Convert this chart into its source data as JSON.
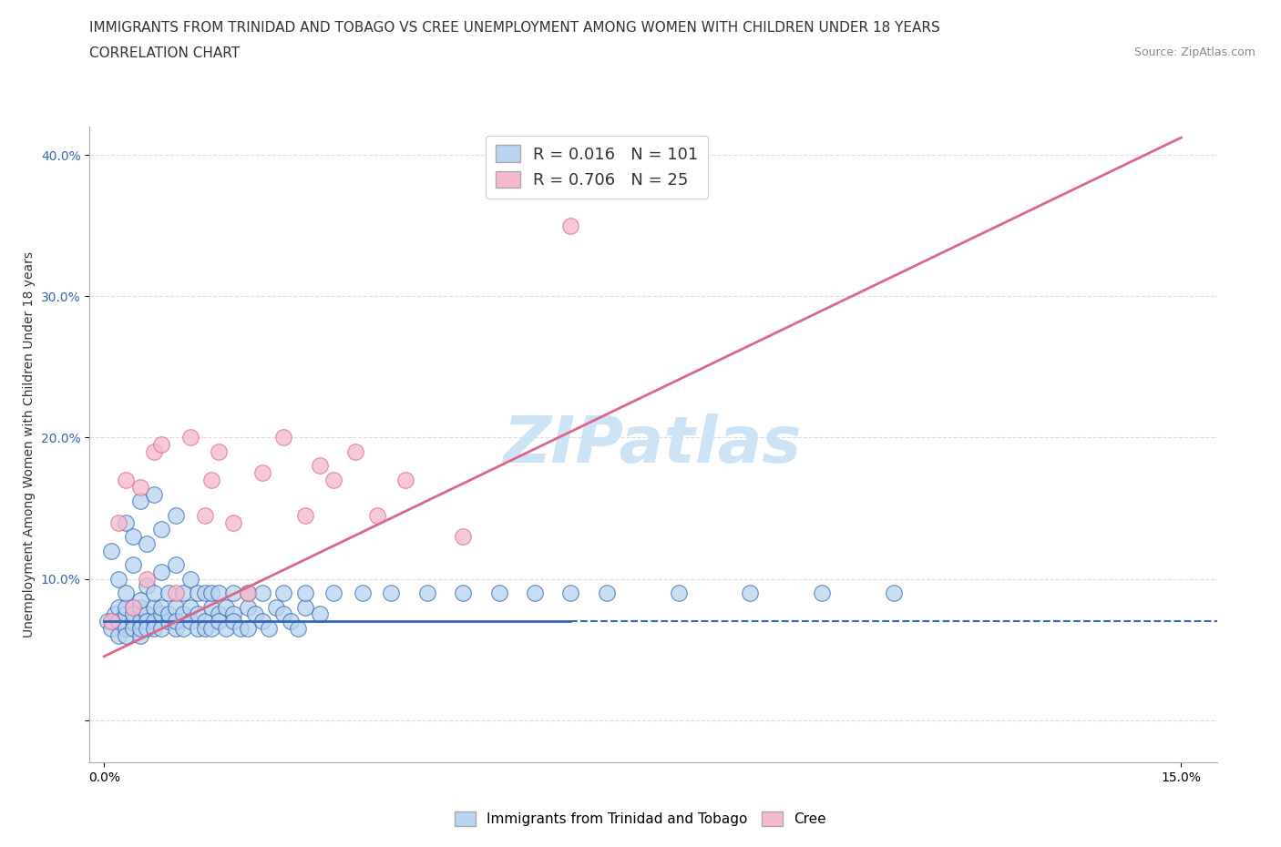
{
  "title_line1": "IMMIGRANTS FROM TRINIDAD AND TOBAGO VS CREE UNEMPLOYMENT AMONG WOMEN WITH CHILDREN UNDER 18 YEARS",
  "title_line2": "CORRELATION CHART",
  "source": "Source: ZipAtlas.com",
  "ylabel": "Unemployment Among Women with Children Under 18 years",
  "xlim": [
    -0.002,
    0.155
  ],
  "ylim": [
    -0.03,
    0.42
  ],
  "xticks": [
    0.0,
    0.15
  ],
  "xtick_labels": [
    "0.0%",
    "15.0%"
  ],
  "yticks": [
    0.0,
    0.1,
    0.2,
    0.3,
    0.4
  ],
  "ytick_labels": [
    "",
    "10.0%",
    "20.0%",
    "30.0%",
    "40.0%"
  ],
  "series1_label": "Immigrants from Trinidad and Tobago",
  "series1_color": "#b8d4f0",
  "series1_edge": "#6699cc",
  "series1_R": "0.016",
  "series1_N": "101",
  "series2_label": "Cree",
  "series2_color": "#f5b8cc",
  "series2_edge": "#e06080",
  "series2_R": "0.706",
  "series2_N": "25",
  "series1_x": [
    0.0005,
    0.001,
    0.0015,
    0.002,
    0.002,
    0.002,
    0.003,
    0.003,
    0.003,
    0.003,
    0.004,
    0.004,
    0.004,
    0.004,
    0.005,
    0.005,
    0.005,
    0.005,
    0.006,
    0.006,
    0.006,
    0.007,
    0.007,
    0.007,
    0.008,
    0.008,
    0.008,
    0.009,
    0.009,
    0.01,
    0.01,
    0.01,
    0.011,
    0.011,
    0.012,
    0.012,
    0.013,
    0.013,
    0.014,
    0.014,
    0.015,
    0.015,
    0.016,
    0.016,
    0.017,
    0.017,
    0.018,
    0.018,
    0.019,
    0.02,
    0.02,
    0.021,
    0.022,
    0.023,
    0.024,
    0.025,
    0.026,
    0.027,
    0.028,
    0.03,
    0.001,
    0.002,
    0.003,
    0.003,
    0.004,
    0.004,
    0.005,
    0.005,
    0.006,
    0.006,
    0.007,
    0.007,
    0.008,
    0.008,
    0.009,
    0.01,
    0.01,
    0.011,
    0.012,
    0.013,
    0.014,
    0.015,
    0.016,
    0.018,
    0.02,
    0.022,
    0.025,
    0.028,
    0.032,
    0.036,
    0.04,
    0.045,
    0.05,
    0.055,
    0.06,
    0.065,
    0.07,
    0.08,
    0.09,
    0.1,
    0.11
  ],
  "series1_y": [
    0.07,
    0.065,
    0.075,
    0.06,
    0.08,
    0.07,
    0.065,
    0.075,
    0.08,
    0.06,
    0.07,
    0.08,
    0.065,
    0.075,
    0.07,
    0.06,
    0.08,
    0.065,
    0.075,
    0.07,
    0.065,
    0.08,
    0.07,
    0.065,
    0.075,
    0.08,
    0.065,
    0.07,
    0.075,
    0.08,
    0.065,
    0.07,
    0.075,
    0.065,
    0.08,
    0.07,
    0.065,
    0.075,
    0.07,
    0.065,
    0.08,
    0.065,
    0.075,
    0.07,
    0.08,
    0.065,
    0.075,
    0.07,
    0.065,
    0.08,
    0.065,
    0.075,
    0.07,
    0.065,
    0.08,
    0.075,
    0.07,
    0.065,
    0.08,
    0.075,
    0.12,
    0.1,
    0.14,
    0.09,
    0.13,
    0.11,
    0.155,
    0.085,
    0.125,
    0.095,
    0.16,
    0.09,
    0.105,
    0.135,
    0.09,
    0.145,
    0.11,
    0.09,
    0.1,
    0.09,
    0.09,
    0.09,
    0.09,
    0.09,
    0.09,
    0.09,
    0.09,
    0.09,
    0.09,
    0.09,
    0.09,
    0.09,
    0.09,
    0.09,
    0.09,
    0.09,
    0.09,
    0.09,
    0.09,
    0.09,
    0.09
  ],
  "series2_x": [
    0.001,
    0.002,
    0.003,
    0.004,
    0.005,
    0.006,
    0.007,
    0.008,
    0.01,
    0.012,
    0.014,
    0.015,
    0.016,
    0.018,
    0.02,
    0.022,
    0.025,
    0.028,
    0.03,
    0.032,
    0.035,
    0.038,
    0.042,
    0.05,
    0.065
  ],
  "series2_y": [
    0.07,
    0.14,
    0.17,
    0.08,
    0.165,
    0.1,
    0.19,
    0.195,
    0.09,
    0.2,
    0.145,
    0.17,
    0.19,
    0.14,
    0.09,
    0.175,
    0.2,
    0.145,
    0.18,
    0.17,
    0.19,
    0.145,
    0.17,
    0.13,
    0.35
  ],
  "line1_intercept": 0.07,
  "line1_slope": 0.0,
  "line2_intercept": 0.045,
  "line2_slope": 2.45,
  "watermark": "ZIPatlas",
  "watermark_color": "#cce4f5",
  "line1_color": "#3366bb",
  "line2_color": "#dd6688",
  "grid_color": "#dddddd",
  "title_fontsize": 11,
  "axis_label_fontsize": 10,
  "legend_R_color": "#3366bb",
  "legend_N_color": "#3366bb"
}
